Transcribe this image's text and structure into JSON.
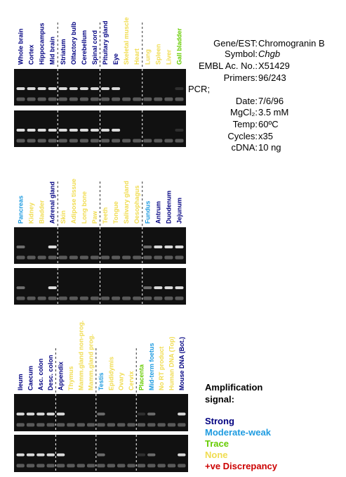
{
  "info": [
    {
      "label": "Gene/EST:",
      "value": "Chromogranin B"
    },
    {
      "label": "Symbol:",
      "value": "Chgb"
    },
    {
      "label": "EMBL Ac. No.:",
      "value": "X51429"
    },
    {
      "label": "Primers:",
      "value": "96/243"
    },
    {
      "label": "PCR;",
      "value": ""
    },
    {
      "label": "Date:",
      "value": "7/6/96"
    },
    {
      "label": "MgCl₂:",
      "value": "3.5 mM"
    },
    {
      "label": "Temp:",
      "value": "60ºC"
    },
    {
      "label": "Cycles:",
      "value": "x35"
    },
    {
      "label": "cDNA:",
      "value": "10 ng"
    }
  ],
  "legend": {
    "title": [
      "Amplification",
      "signal:"
    ],
    "items": [
      {
        "label": "Strong",
        "color": "#000080"
      },
      {
        "label": "Moderate-weak",
        "color": "#1e9be0"
      },
      {
        "label": "Trace",
        "color": "#66cc00"
      },
      {
        "label": "None",
        "color": "#f0dc50"
      },
      {
        "label": "+ve Discrepancy",
        "color": "#cc0000"
      }
    ]
  },
  "panels": [
    {
      "lanes": [
        {
          "label": "Whole brain",
          "signal": 0
        },
        {
          "label": "Cortex",
          "signal": 0
        },
        {
          "label": "Hippocampus",
          "signal": 0
        },
        {
          "label": "Mid brain",
          "signal": 0
        },
        {
          "label": "Striatum",
          "signal": 0
        },
        {
          "label": "Olfactory bulb",
          "signal": 0
        },
        {
          "label": "Cerebellum",
          "signal": 0
        },
        {
          "label": "Spinal cord",
          "signal": 0
        },
        {
          "label": "Pituitary gland",
          "signal": 0
        },
        {
          "label": "Eye",
          "signal": 0
        },
        {
          "label": "Skeletal muscle",
          "signal": 3
        },
        {
          "label": "Heart",
          "signal": 3
        },
        {
          "label": "Lung",
          "signal": 3
        },
        {
          "label": "Spleen",
          "signal": 3
        },
        {
          "label": "Liver",
          "signal": 3
        },
        {
          "label": "Gall bladder",
          "signal": 2
        }
      ]
    },
    {
      "lanes": [
        {
          "label": "Pancreas",
          "signal": 1
        },
        {
          "label": "Kidney",
          "signal": 3
        },
        {
          "label": "Bladder",
          "signal": 3
        },
        {
          "label": "Adrenal gland",
          "signal": 0
        },
        {
          "label": "Skin",
          "signal": 3
        },
        {
          "label": "Adipose tissue",
          "signal": 3
        },
        {
          "label": "Long bone",
          "signal": 3
        },
        {
          "label": "Paw",
          "signal": 3
        },
        {
          "label": "Teeth",
          "signal": 3
        },
        {
          "label": "Tongue",
          "signal": 3
        },
        {
          "label": "Salivary gland",
          "signal": 3
        },
        {
          "label": "Oesophagus",
          "signal": 3
        },
        {
          "label": "Fundus",
          "signal": 1
        },
        {
          "label": "Antrum",
          "signal": 0
        },
        {
          "label": "Duodenum",
          "signal": 0
        },
        {
          "label": "Jejunum",
          "signal": 0
        }
      ]
    },
    {
      "lanes": [
        {
          "label": "Ileum",
          "signal": 0
        },
        {
          "label": "Caecum",
          "signal": 0
        },
        {
          "label": "Asc. colon",
          "signal": 0
        },
        {
          "label": "Desc. colon",
          "signal": 0
        },
        {
          "label": "Appendix",
          "signal": 0
        },
        {
          "label": "Thymus",
          "signal": 3
        },
        {
          "label": "Mamm.gland non-prog.",
          "signal": 3
        },
        {
          "label": "Mamm.gland prog.",
          "signal": 3
        },
        {
          "label": "Testis",
          "signal": 1
        },
        {
          "label": "Epididymis",
          "signal": 3
        },
        {
          "label": "Ovary",
          "signal": 3
        },
        {
          "label": "Cervix",
          "signal": 3
        },
        {
          "label": "Placenta",
          "signal": 2
        },
        {
          "label": "Mid-term foetus",
          "signal": 1
        },
        {
          "label": "No RT product",
          "signal": 3
        },
        {
          "label": "Human DNA (Top)",
          "signal": 3
        },
        {
          "label": "Mouse DNA (Bot.)",
          "signal": 0
        }
      ]
    }
  ]
}
